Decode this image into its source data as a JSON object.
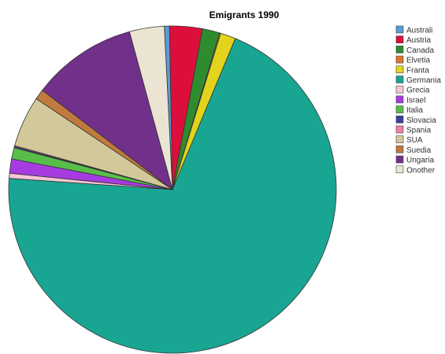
{
  "chart_data": {
    "type": "pie",
    "title": "Emigrants 1990",
    "legend_position": "right",
    "slices": [
      {
        "label": "Australi",
        "value": 0.5,
        "color": "#5b9bd5"
      },
      {
        "label": "Austria",
        "value": 3.2,
        "color": "#dc0f3c"
      },
      {
        "label": "Canada",
        "value": 1.7,
        "color": "#2e8b2e"
      },
      {
        "label": "Elvetia",
        "value": 0.1,
        "color": "#e0762b"
      },
      {
        "label": "Franta",
        "value": 1.5,
        "color": "#e2d41c"
      },
      {
        "label": "Germania",
        "value": 69.2,
        "color": "#18a693"
      },
      {
        "label": "Grecia",
        "value": 0.5,
        "color": "#f6c6d6"
      },
      {
        "label": "Israel",
        "value": 1.4,
        "color": "#a63ce0"
      },
      {
        "label": "Italia",
        "value": 1.1,
        "color": "#58be4a"
      },
      {
        "label": "Slovacia",
        "value": 0.1,
        "color": "#3a3fa0"
      },
      {
        "label": "Spania",
        "value": 0.1,
        "color": "#ef7fae"
      },
      {
        "label": "SUA",
        "value": 5.0,
        "color": "#d2c89a"
      },
      {
        "label": "Suedia",
        "value": 1.0,
        "color": "#c07a3e"
      },
      {
        "label": "Ungaria",
        "value": 10.3,
        "color": "#71308a"
      },
      {
        "label": "Onother",
        "value": 3.4,
        "color": "#ece4d2"
      }
    ]
  }
}
